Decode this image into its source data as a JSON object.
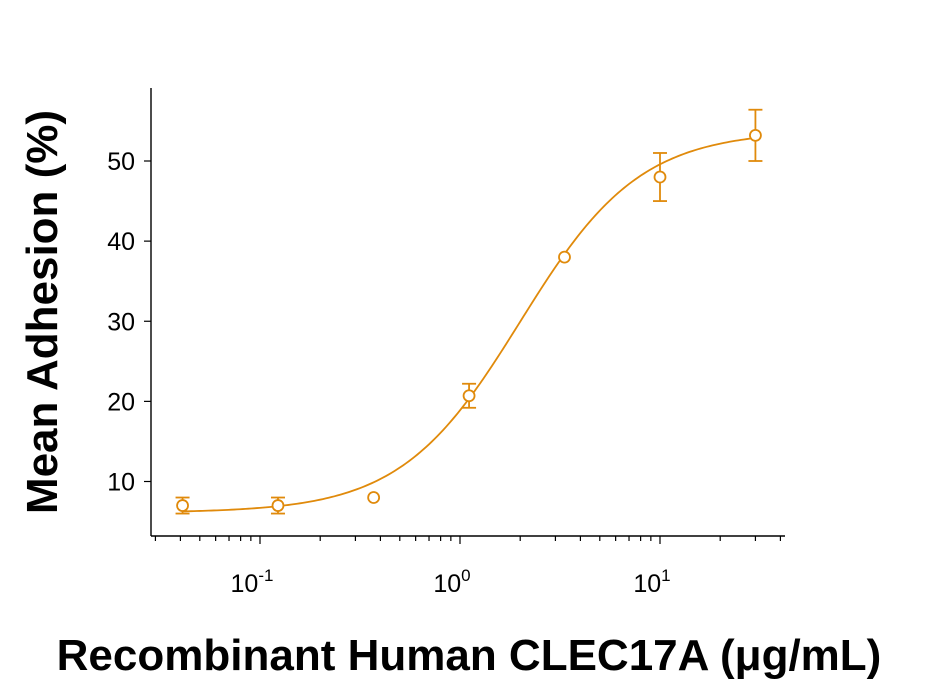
{
  "chart_data": {
    "type": "scatter",
    "xscale": "log",
    "xlabel": "Recombinant Human CLEC17A (μg/mL)",
    "ylabel": "Mean Adhesion (%)",
    "xlim": [
      0.03,
      40
    ],
    "ylim": [
      3,
      59
    ],
    "ytick_labels": [
      "10",
      "20",
      "30",
      "40",
      "50"
    ],
    "yticks": [
      10,
      20,
      30,
      40,
      50
    ],
    "xticks_major": [
      0.1,
      1,
      10
    ],
    "xtick_labels": [
      {
        "base": "10",
        "exp": "-1"
      },
      {
        "base": "10",
        "exp": "0"
      },
      {
        "base": "10",
        "exp": "1"
      }
    ],
    "color": "#E08A0B",
    "series": [
      {
        "x": [
          0.041,
          0.123,
          0.37,
          1.11,
          3.33,
          10,
          30
        ],
        "y": [
          7.0,
          7.0,
          8.0,
          20.7,
          38.0,
          48.0,
          53.2
        ],
        "err": [
          1.0,
          1.0,
          0,
          1.5,
          0,
          3.0,
          3.2
        ]
      }
    ],
    "fit": {
      "model": "4PL",
      "bottom": 6.1,
      "top": 53.8,
      "ec50": 2.0,
      "hill": 1.45
    },
    "grid": false
  }
}
